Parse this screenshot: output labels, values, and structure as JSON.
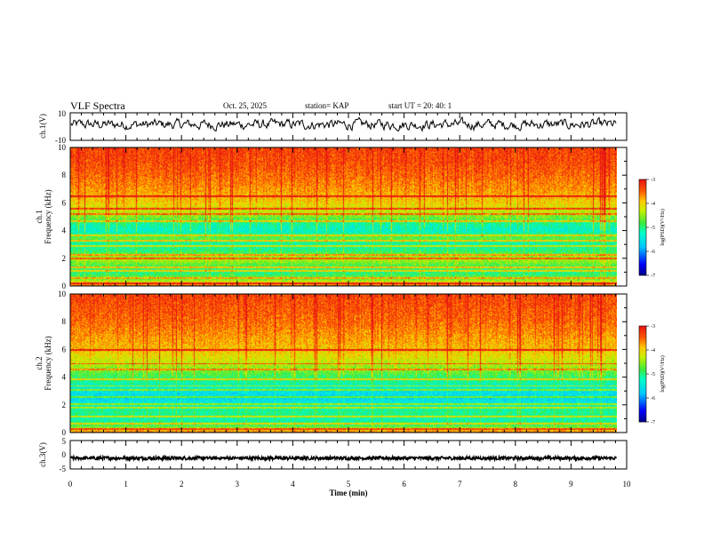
{
  "header": {
    "title": "VLF Spectra",
    "date": "Oct. 25, 2025",
    "station": "station= KAP",
    "start": "start  UT  =   20: 40: 1"
  },
  "chart_data": [
    {
      "type": "line",
      "name": "ch1-voltage",
      "ylabel": "ch.1(V)",
      "ylim": [
        -10,
        10
      ],
      "ytick_labels": [
        "10",
        "-10"
      ],
      "xlim": [
        0,
        10
      ],
      "data_extent_min": 9.82,
      "mean": 1.5,
      "amplitude": 3.5
    },
    {
      "type": "heatmap",
      "name": "ch1-spectrogram",
      "ylabel": "ch.1\nFrequency (kHz)",
      "ylim": [
        0,
        10
      ],
      "ytick_labels": [
        "0",
        "2",
        "4",
        "6",
        "8",
        "10"
      ],
      "xlim": [
        0,
        10
      ],
      "data_extent_min": 9.82,
      "colorbar_label": "log(PSD)(V²/Hz)",
      "colorbar_range": [
        -7,
        -3
      ],
      "colorbar_tick_labels": [
        "-3",
        "-4",
        "-5",
        "-6",
        "-7"
      ],
      "log_psd_profile_by_khz": [
        [
          0,
          -3.4
        ],
        [
          0.5,
          -4.6
        ],
        [
          1.0,
          -5.0
        ],
        [
          1.5,
          -4.8
        ],
        [
          2.0,
          -4.3
        ],
        [
          2.5,
          -4.9
        ],
        [
          3.0,
          -5.2
        ],
        [
          3.5,
          -4.7
        ],
        [
          4.0,
          -5.3
        ],
        [
          4.5,
          -5.1
        ],
        [
          5.0,
          -4.6
        ],
        [
          5.5,
          -4.2
        ],
        [
          6.0,
          -4.0
        ],
        [
          7.0,
          -3.7
        ],
        [
          8.0,
          -3.5
        ],
        [
          9.0,
          -3.35
        ],
        [
          10.0,
          -3.3
        ]
      ],
      "band_lines_khz": [
        0.2,
        0.6,
        1.1,
        1.4,
        2.0,
        2.3,
        2.9,
        3.3,
        3.7,
        4.7,
        5.2,
        5.6,
        6.5
      ]
    },
    {
      "type": "heatmap",
      "name": "ch2-spectrogram",
      "ylabel": "ch.2\nFrequency (kHz)",
      "ylim": [
        0,
        10
      ],
      "ytick_labels": [
        "0",
        "2",
        "4",
        "6",
        "8",
        "10"
      ],
      "xlim": [
        0,
        10
      ],
      "data_extent_min": 9.82,
      "colorbar_label": "log(PSD)(V²/Hz)",
      "colorbar_range": [
        -7,
        -3
      ],
      "colorbar_tick_labels": [
        "-3",
        "-4",
        "-5",
        "-6",
        "-7"
      ],
      "log_psd_profile_by_khz": [
        [
          0,
          -3.4
        ],
        [
          0.5,
          -4.8
        ],
        [
          1.0,
          -5.2
        ],
        [
          1.5,
          -5.0
        ],
        [
          2.0,
          -5.3
        ],
        [
          2.5,
          -5.6
        ],
        [
          3.0,
          -5.5
        ],
        [
          3.5,
          -5.2
        ],
        [
          4.0,
          -4.9
        ],
        [
          4.5,
          -4.6
        ],
        [
          5.0,
          -4.3
        ],
        [
          5.5,
          -4.1
        ],
        [
          6.0,
          -3.9
        ],
        [
          7.0,
          -3.7
        ],
        [
          8.0,
          -3.5
        ],
        [
          9.0,
          -3.4
        ],
        [
          10.0,
          -3.3
        ]
      ],
      "band_lines_khz": [
        0.3,
        0.7,
        1.2,
        1.8,
        2.1,
        2.6,
        3.1,
        3.4,
        3.9,
        4.6,
        5.0,
        6.0
      ]
    },
    {
      "type": "line",
      "name": "ch3-voltage",
      "ylabel": "ch.3(V)",
      "ylim": [
        -5,
        5
      ],
      "ytick_labels": [
        "5",
        "0",
        "-5"
      ],
      "xlim": [
        0,
        10
      ],
      "data_extent_min": 9.82,
      "mean": -1.2,
      "amplitude": 0.6,
      "xlabel": "Time (min)",
      "xtick_labels": [
        "0",
        "1",
        "2",
        "3",
        "4",
        "5",
        "6",
        "7",
        "8",
        "9",
        "10"
      ]
    }
  ],
  "colors": {
    "axis": "#000000",
    "trace": "#000000",
    "background": "#ffffff"
  }
}
